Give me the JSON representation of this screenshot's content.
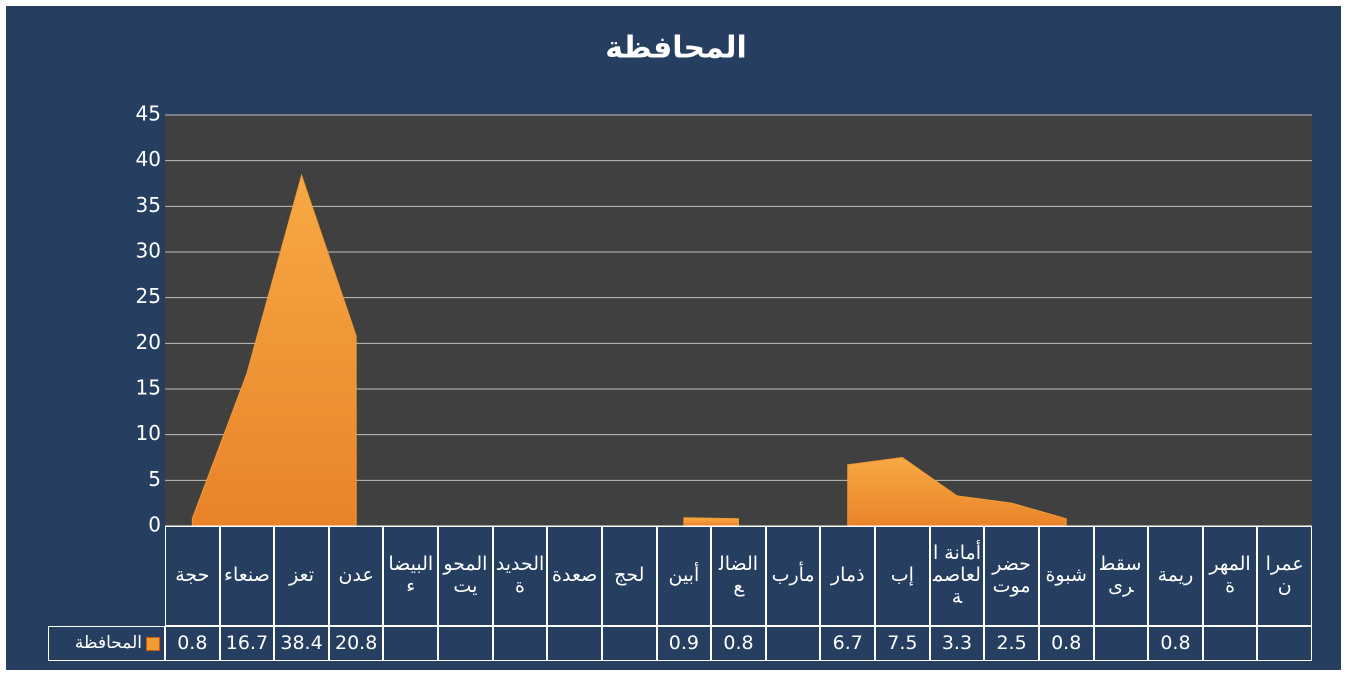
{
  "chart_data": {
    "type": "area",
    "title": "المحافظة",
    "categories": [
      "حجة",
      "صنعاء",
      "تعز",
      "عدن",
      "البيضاء",
      "المحويت",
      "الحديدة",
      "صعدة",
      "لحج",
      "أبين",
      "الضالع",
      "مأرب",
      "ذمار",
      "إب",
      "أمانة العاصمة",
      "حضرموت",
      "شبوة",
      "سقطرى",
      "ريمة",
      "المهرة",
      "عمران"
    ],
    "series": [
      {
        "name": "المحافظة",
        "color": "#f39b2f",
        "values": [
          0.8,
          16.7,
          38.4,
          20.8,
          null,
          null,
          null,
          null,
          null,
          0.9,
          0.8,
          null,
          6.7,
          7.5,
          3.3,
          2.5,
          0.8,
          null,
          0.8,
          null,
          null
        ]
      }
    ],
    "ylim": [
      0,
      45
    ],
    "yticks": [
      0,
      5,
      10,
      15,
      20,
      25,
      30,
      35,
      40,
      45
    ],
    "grid": true,
    "data_table": true
  }
}
